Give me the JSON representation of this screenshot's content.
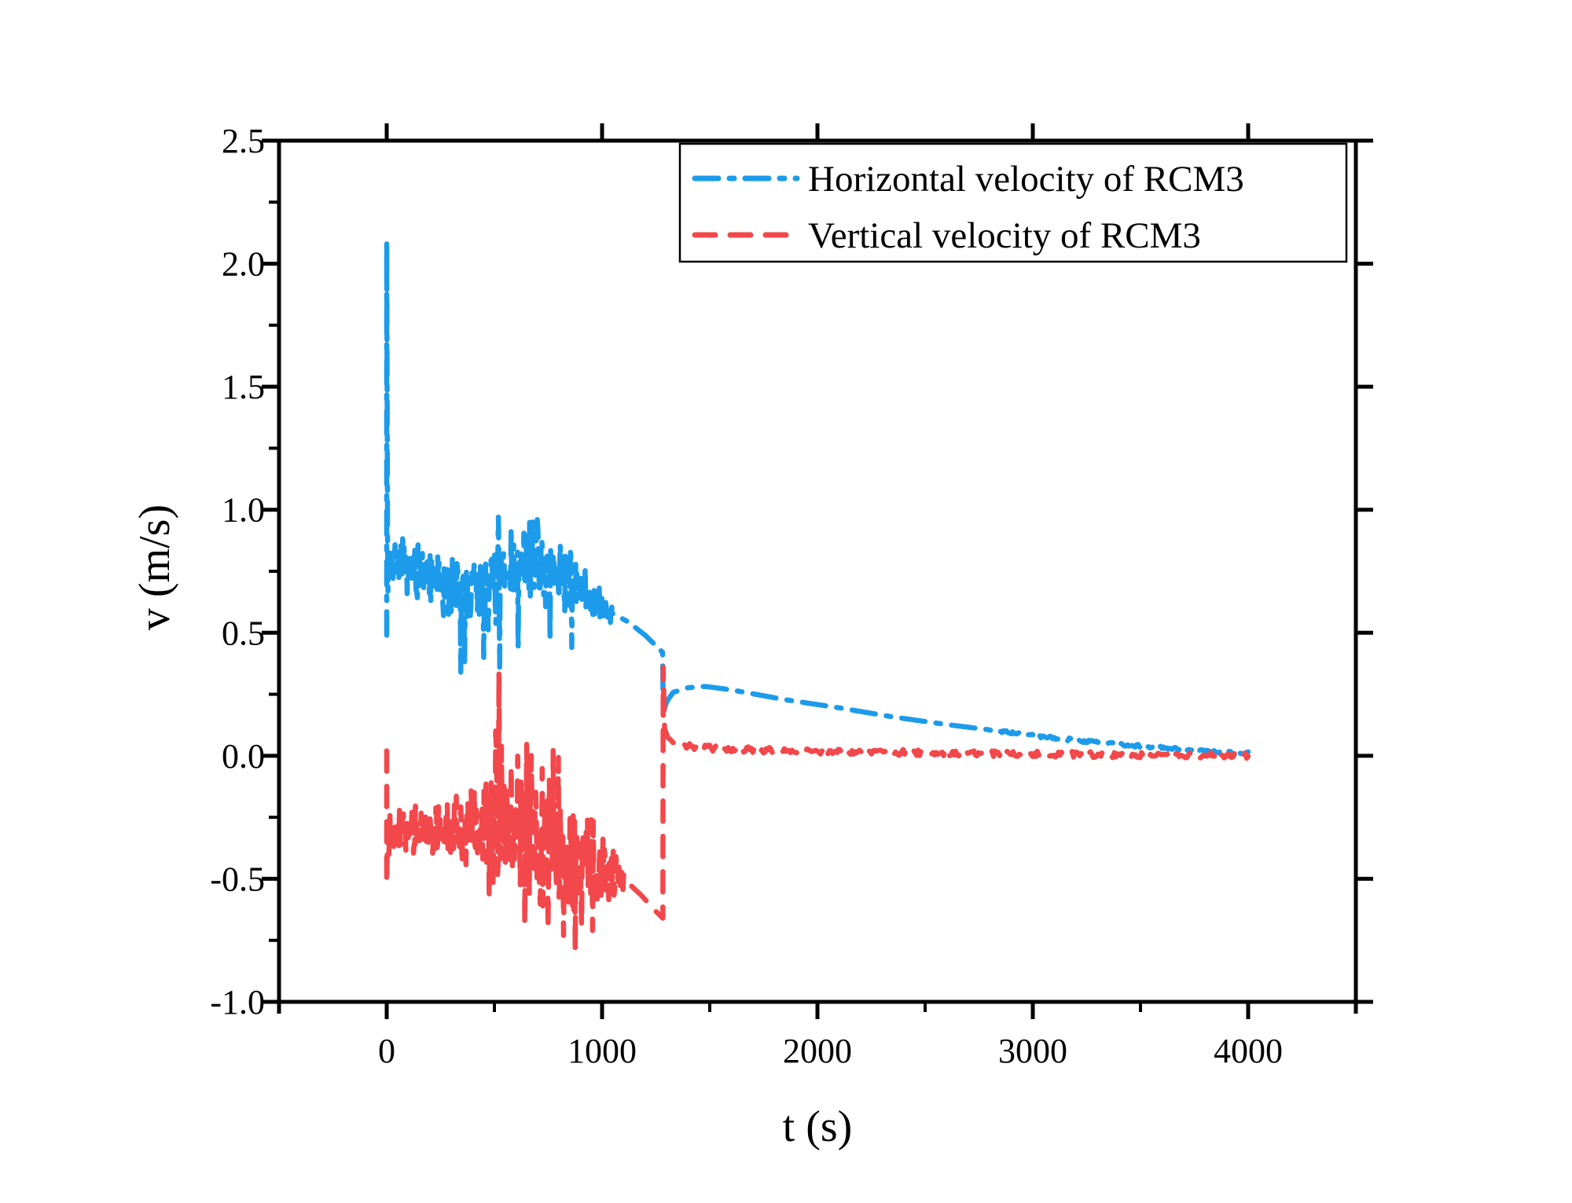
{
  "figure": {
    "background": "#ffffff",
    "frame_color": "#000000"
  },
  "chart_data": {
    "type": "line",
    "title": "",
    "xlabel": "t (s)",
    "ylabel": "v (m/s)",
    "xlim": [
      -500,
      4500
    ],
    "ylim": [
      -1.0,
      2.5
    ],
    "grid": "off",
    "legend_position": "top-right-inside",
    "x_ticks": {
      "major": [
        {
          "v": 0,
          "label": "0"
        },
        {
          "v": 1000,
          "label": "1000"
        },
        {
          "v": 2000,
          "label": "2000"
        },
        {
          "v": 3000,
          "label": "3000"
        },
        {
          "v": 4000,
          "label": "4000"
        }
      ],
      "minor": [
        500,
        1500,
        2500,
        3500
      ]
    },
    "y_ticks": {
      "major": [
        {
          "v": 2.5,
          "label": "2.5"
        },
        {
          "v": 2.0,
          "label": "2.0"
        },
        {
          "v": 1.5,
          "label": "1.5"
        },
        {
          "v": 1.0,
          "label": "1.0"
        },
        {
          "v": 0.5,
          "label": "0.5"
        },
        {
          "v": 0.0,
          "label": "0.0"
        },
        {
          "v": -0.5,
          "label": "-0.5"
        },
        {
          "v": -1.0,
          "label": "-1.0"
        }
      ],
      "minor": [
        2.25,
        1.75,
        1.25,
        0.75,
        0.25,
        -0.25,
        -0.75
      ]
    },
    "legend": {
      "entries": [
        "Horizontal velocity of RCM3",
        "Vertical velocity of RCM3"
      ]
    },
    "series": [
      {
        "id": "horizontal-velocity",
        "label": "Horizontal velocity of RCM3",
        "color": "#1c9beb",
        "width": 6.5,
        "dash": [
          30,
          14,
          6,
          14
        ],
        "seed": 7,
        "noise_dt": 3,
        "smooth_dt": 7,
        "pre": [
          [
            0,
            0.49
          ],
          [
            0,
            2.09
          ],
          [
            4,
            0.86
          ]
        ],
        "noise_env": [
          [
            6,
            0.79,
            0.13
          ],
          [
            80,
            0.77,
            0.13
          ],
          [
            160,
            0.74,
            0.13
          ],
          [
            240,
            0.7,
            0.14
          ],
          [
            320,
            0.67,
            0.16
          ],
          [
            400,
            0.67,
            0.17
          ],
          [
            480,
            0.7,
            0.19
          ],
          [
            560,
            0.73,
            0.19
          ],
          [
            640,
            0.77,
            0.18
          ],
          [
            720,
            0.78,
            0.17
          ],
          [
            800,
            0.75,
            0.16
          ],
          [
            880,
            0.7,
            0.13
          ],
          [
            960,
            0.62,
            0.1
          ],
          [
            1020,
            0.59,
            0.07
          ],
          [
            1045,
            0.58,
            0.04
          ]
        ],
        "smooth": [
          [
            1045,
            0.58
          ],
          [
            1120,
            0.545
          ],
          [
            1200,
            0.49
          ],
          [
            1270,
            0.43
          ],
          [
            1281,
            0.42
          ],
          [
            1284,
            0.175
          ],
          [
            1300,
            0.22
          ],
          [
            1330,
            0.258
          ],
          [
            1400,
            0.277
          ],
          [
            1480,
            0.282
          ],
          [
            1600,
            0.268
          ],
          [
            1850,
            0.228
          ],
          [
            2100,
            0.195
          ],
          [
            2350,
            0.158
          ],
          [
            2600,
            0.127
          ],
          [
            2850,
            0.1
          ],
          [
            3100,
            0.072
          ],
          [
            3350,
            0.05
          ],
          [
            3600,
            0.032
          ],
          [
            3800,
            0.019
          ],
          [
            4000,
            0.01
          ]
        ],
        "spikes": [
          [
            345,
            0.34
          ],
          [
            362,
            0.37
          ],
          [
            450,
            0.4
          ],
          [
            520,
            0.97
          ],
          [
            524,
            0.36
          ],
          [
            610,
            0.44
          ],
          [
            665,
            0.97
          ],
          [
            698,
            0.96
          ],
          [
            760,
            0.47
          ],
          [
            860,
            0.44
          ]
        ],
        "tail_noise": {
          "from": 2800,
          "amp": 0.006
        }
      },
      {
        "id": "vertical-velocity",
        "label": "Vertical velocity of RCM3",
        "color": "#f2484b",
        "width": 6.5,
        "dash": [
          26,
          19
        ],
        "seed": 13,
        "noise_dt": 3,
        "smooth_dt": 7,
        "pre": [
          [
            0,
            0.02
          ],
          [
            0,
            -0.52
          ],
          [
            4,
            -0.31
          ]
        ],
        "noise_env": [
          [
            6,
            -0.3,
            0.11
          ],
          [
            80,
            -0.3,
            0.1
          ],
          [
            160,
            -0.31,
            0.11
          ],
          [
            240,
            -0.31,
            0.12
          ],
          [
            320,
            -0.3,
            0.14
          ],
          [
            380,
            -0.29,
            0.18
          ],
          [
            440,
            -0.27,
            0.27
          ],
          [
            500,
            -0.25,
            0.35
          ],
          [
            560,
            -0.27,
            0.38
          ],
          [
            620,
            -0.29,
            0.4
          ],
          [
            680,
            -0.32,
            0.42
          ],
          [
            740,
            -0.35,
            0.41
          ],
          [
            800,
            -0.38,
            0.37
          ],
          [
            860,
            -0.41,
            0.31
          ],
          [
            920,
            -0.43,
            0.25
          ],
          [
            980,
            -0.45,
            0.18
          ],
          [
            1040,
            -0.47,
            0.12
          ],
          [
            1100,
            -0.5,
            0.06
          ]
        ],
        "smooth": [
          [
            1100,
            -0.5
          ],
          [
            1180,
            -0.565
          ],
          [
            1250,
            -0.632
          ],
          [
            1282,
            -0.66
          ],
          [
            1284,
            0.36
          ],
          [
            1290,
            0.11
          ],
          [
            1305,
            0.075
          ],
          [
            1330,
            0.055
          ],
          [
            1370,
            0.042
          ],
          [
            1450,
            0.034
          ],
          [
            1550,
            0.028
          ],
          [
            1700,
            0.024
          ],
          [
            2000,
            0.019
          ],
          [
            2300,
            0.015
          ],
          [
            2600,
            0.011
          ],
          [
            3000,
            0.007
          ],
          [
            3400,
            0.004
          ],
          [
            3700,
            0.002
          ],
          [
            4000,
            0.001
          ]
        ],
        "spikes": [
          [
            521,
            0.34
          ],
          [
            640,
            -0.68
          ],
          [
            748,
            -0.7
          ],
          [
            820,
            -0.73
          ],
          [
            876,
            -0.79
          ],
          [
            905,
            -0.69
          ],
          [
            955,
            -0.71
          ]
        ],
        "tail_noise": {
          "from": 1330,
          "amp": 0.012
        }
      }
    ]
  }
}
